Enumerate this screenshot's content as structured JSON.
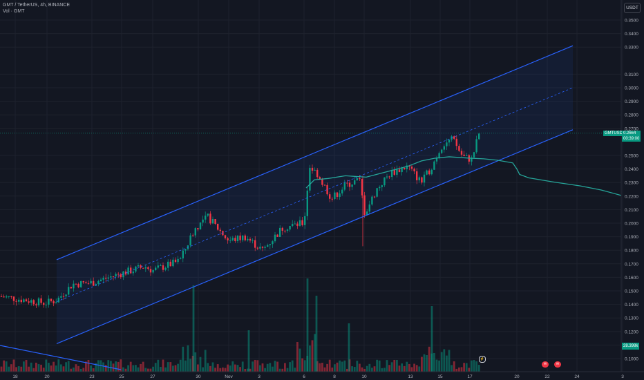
{
  "legend": {
    "symbol_line": "GMT / TetherUS, 4h, BINANCE",
    "volume_line": "Vol · GMT"
  },
  "currency_button": "USDT",
  "price_axis": {
    "ticks": [
      "0.3500",
      "0.3400",
      "0.3300",
      "0.3100",
      "0.3000",
      "0.2900",
      "0.2800",
      "0.2700",
      "0.2500",
      "0.2400",
      "0.2300",
      "0.2200",
      "0.2100",
      "0.2000",
      "0.1900",
      "0.1800",
      "0.1700",
      "0.1600",
      "0.1500",
      "0.1400",
      "0.1300",
      "0.1200",
      "0.1100",
      "0.1000"
    ],
    "badges": {
      "last": {
        "price": "0.2664",
        "countdown": "00:39:00",
        "symbol": "GMTUSDT",
        "color": "#089981"
      },
      "volume": {
        "label": "28.398k",
        "color": "#089981"
      }
    }
  },
  "time_axis": {
    "ticks": [
      "18",
      "20",
      "23",
      "25",
      "27",
      "30",
      "Nov",
      "3",
      "6",
      "8",
      "10",
      "13",
      "15",
      "17",
      "20",
      "22",
      "24",
      "3"
    ]
  },
  "colors": {
    "up": "#089981",
    "down": "#f23645",
    "channel": "#2962ff",
    "forecast": "#26a69a",
    "background": "#131722"
  },
  "events": {
    "event_1": "✉",
    "event_2": "✉",
    "pin": "⚡"
  },
  "chart_data": {
    "type": "candlestick",
    "symbol": "GMT / TetherUS",
    "interval": "4h",
    "exchange": "BINANCE",
    "ylim": [
      0.0955,
      0.358
    ],
    "x": [
      "Oct 18",
      "Oct 20",
      "Oct 23",
      "Oct 25",
      "Oct 27",
      "Oct 30",
      "Nov",
      "Nov 3",
      "Nov 6",
      "Nov 8",
      "Nov 10",
      "Nov 13",
      "Nov 15",
      "Nov 17"
    ],
    "close": [
      0.146,
      0.141,
      0.156,
      0.163,
      0.165,
      0.203,
      0.193,
      0.198,
      0.234,
      0.22,
      0.225,
      0.235,
      0.255,
      0.2664
    ],
    "last_price": 0.2664,
    "regression_channel": {
      "upper": {
        "from": [
          "Oct 20",
          0.173
        ],
        "to": [
          "Nov 24",
          0.331
        ]
      },
      "middle": {
        "from": [
          "Oct 20",
          0.142
        ],
        "to": [
          "Nov 24",
          0.3
        ]
      },
      "lower": {
        "from": [
          "Oct 20",
          0.111
        ],
        "to": [
          "Nov 24",
          0.269
        ]
      }
    }
  }
}
